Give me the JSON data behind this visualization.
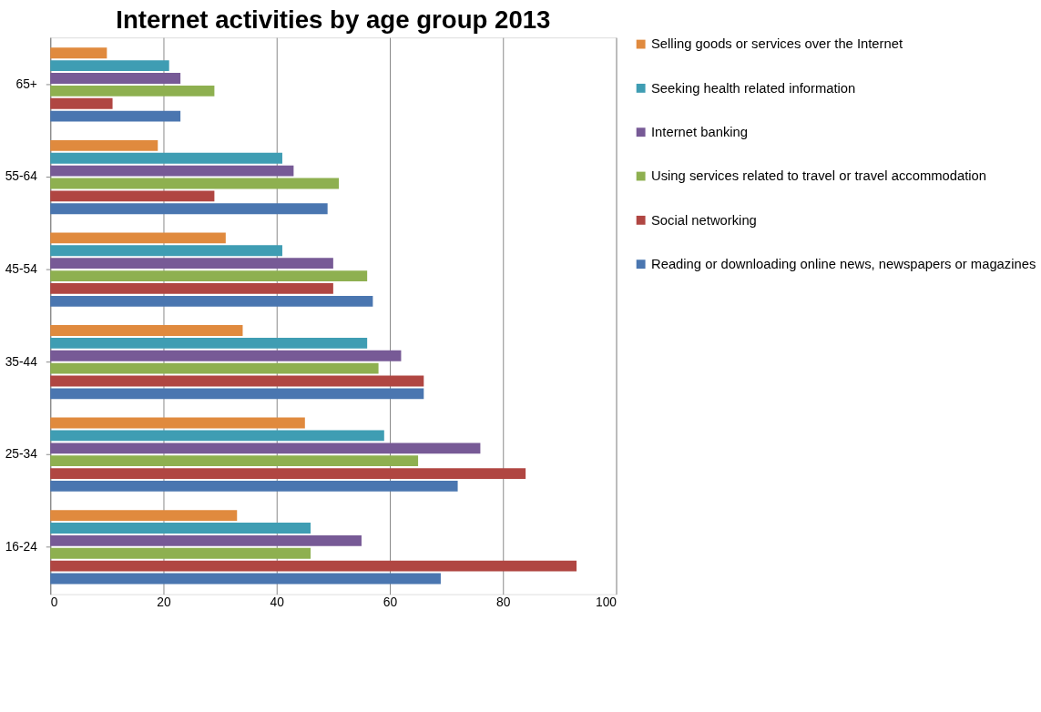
{
  "chart_data": {
    "type": "bar",
    "orientation": "horizontal",
    "title": "Internet activities by age group 2013",
    "categories": [
      "65+",
      "55-64",
      "45-54",
      "35-44",
      "25-34",
      "16-24"
    ],
    "series": [
      {
        "name": "Selling goods or services over the Internet",
        "color": "#e08a3e",
        "values": [
          10,
          19,
          31,
          34,
          45,
          33
        ]
      },
      {
        "name": "Seeking health related information",
        "color": "#3f9db3",
        "values": [
          21,
          41,
          41,
          56,
          59,
          46
        ]
      },
      {
        "name": "Internet banking",
        "color": "#775a96",
        "values": [
          23,
          43,
          50,
          62,
          76,
          55
        ]
      },
      {
        "name": "Using services related to travel or travel accommodation",
        "color": "#8eb050",
        "values": [
          29,
          51,
          56,
          58,
          65,
          46
        ]
      },
      {
        "name": "Social networking",
        "color": "#b04642",
        "values": [
          11,
          29,
          50,
          66,
          84,
          93
        ]
      },
      {
        "name": "Reading or downloading online news, newspapers or magazines",
        "color": "#4a76b0",
        "values": [
          23,
          49,
          57,
          66,
          72,
          69
        ]
      }
    ],
    "xlim": [
      0,
      100
    ],
    "xticks": [
      0,
      20,
      40,
      60,
      80,
      100
    ],
    "grid": "x",
    "legend": "right"
  }
}
